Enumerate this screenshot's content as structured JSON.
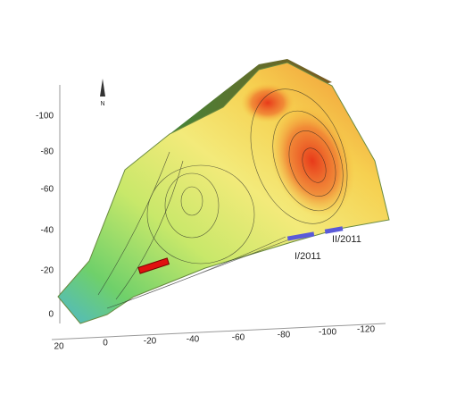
{
  "figure": {
    "north_label": "N",
    "vertical_axis": {
      "ticks": [
        -100,
        -80,
        -60,
        -40,
        -20,
        0
      ]
    },
    "horizontal_axis": {
      "ticks": [
        20,
        0,
        -20,
        -40,
        -60,
        -80,
        -100,
        -120
      ]
    },
    "annotations": [
      "I/2011",
      "II/2011"
    ]
  }
}
